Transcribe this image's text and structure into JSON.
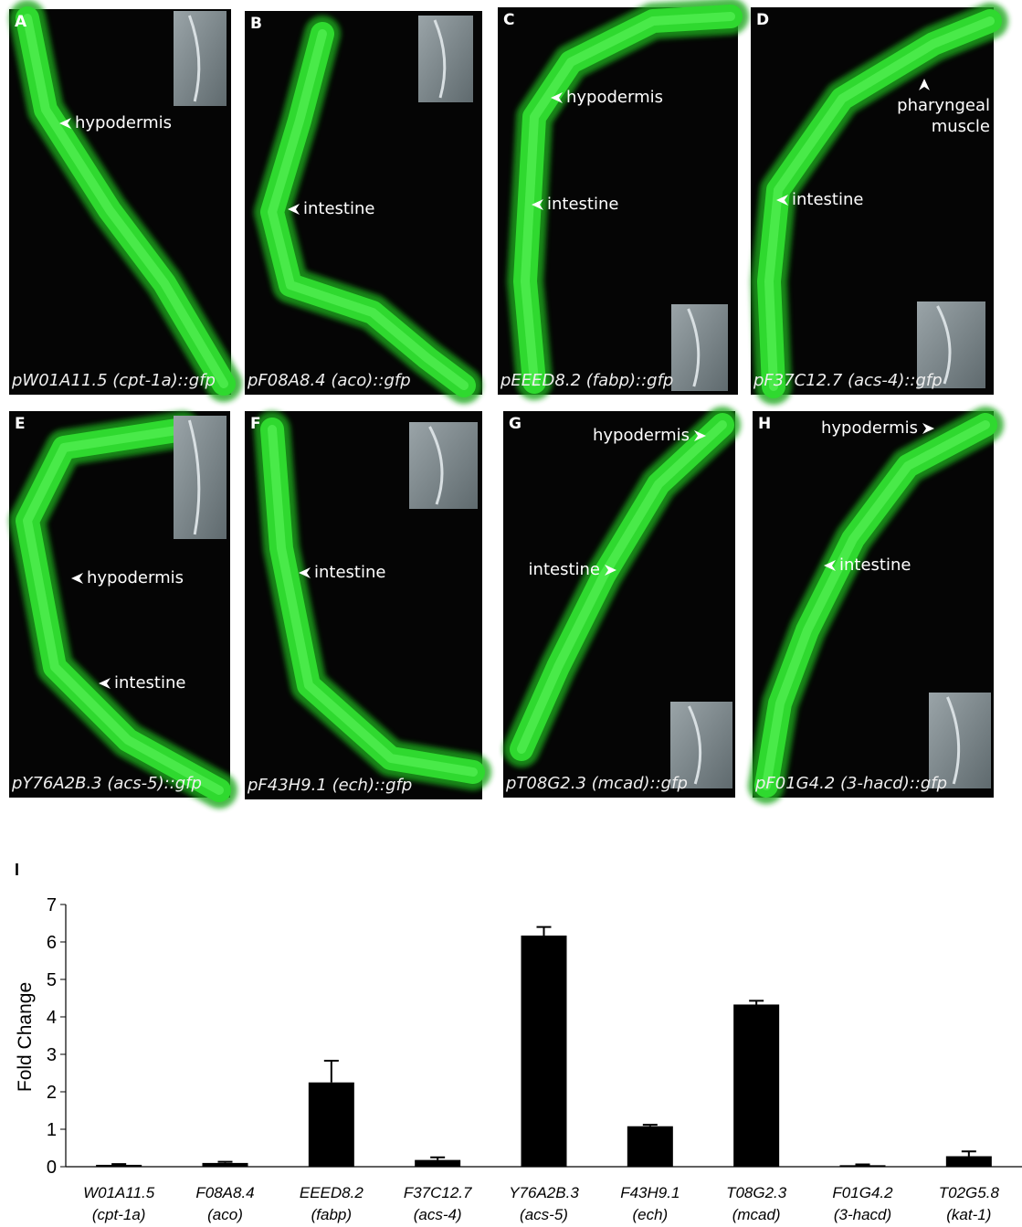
{
  "panels": [
    {
      "letter": "A",
      "caption": "pW01A11.5 (cpt-1a)::gfp",
      "labels": [
        "hypodermis"
      ]
    },
    {
      "letter": "B",
      "caption": "pF08A8.4 (aco)::gfp",
      "labels": [
        "intestine"
      ]
    },
    {
      "letter": "C",
      "caption": "pEEED8.2 (fabp)::gfp",
      "labels": [
        "hypodermis",
        "intestine"
      ]
    },
    {
      "letter": "D",
      "caption": "pF37C12.7 (acs-4)::gfp",
      "labels": [
        "pharyngeal muscle",
        "intestine"
      ]
    },
    {
      "letter": "E",
      "caption": "pY76A2B.3 (acs-5)::gfp",
      "labels": [
        "hypodermis",
        "intestine"
      ]
    },
    {
      "letter": "F",
      "caption": "pF43H9.1 (ech)::gfp",
      "labels": [
        "intestine"
      ]
    },
    {
      "letter": "G",
      "caption": "pT08G2.3 (mcad)::gfp",
      "labels": [
        "hypodermis",
        "intestine"
      ]
    },
    {
      "letter": "H",
      "caption": "pF01G4.2 (3-hacd)::gfp",
      "labels": [
        "hypodermis",
        "intestine"
      ]
    }
  ],
  "chart_data": {
    "type": "bar",
    "panel_letter": "I",
    "y_label": "Fold Change",
    "categories": [
      "W01A11.5",
      "F08A8.4",
      "EEED8.2",
      "F37C12.7",
      "Y76A2B.3",
      "F43H9.1",
      "T08G2.3",
      "F01G4.2",
      "T02G5.8"
    ],
    "category_sublabels": [
      "(cpt-1a)",
      "(aco)",
      "(fabp)",
      "(acs-4)",
      "(acs-5)",
      "(ech)",
      "(mcad)",
      "(3-hacd)",
      "(kat-1)"
    ],
    "values": [
      0.05,
      0.1,
      2.25,
      0.18,
      6.17,
      1.08,
      4.33,
      0.04,
      0.28
    ],
    "errors": [
      0.02,
      0.03,
      0.58,
      0.07,
      0.23,
      0.04,
      0.1,
      0.02,
      0.13
    ],
    "color": "#000000",
    "ylim": [
      0,
      7
    ],
    "yticks": [
      0,
      1,
      2,
      3,
      4,
      5,
      6,
      7
    ]
  }
}
